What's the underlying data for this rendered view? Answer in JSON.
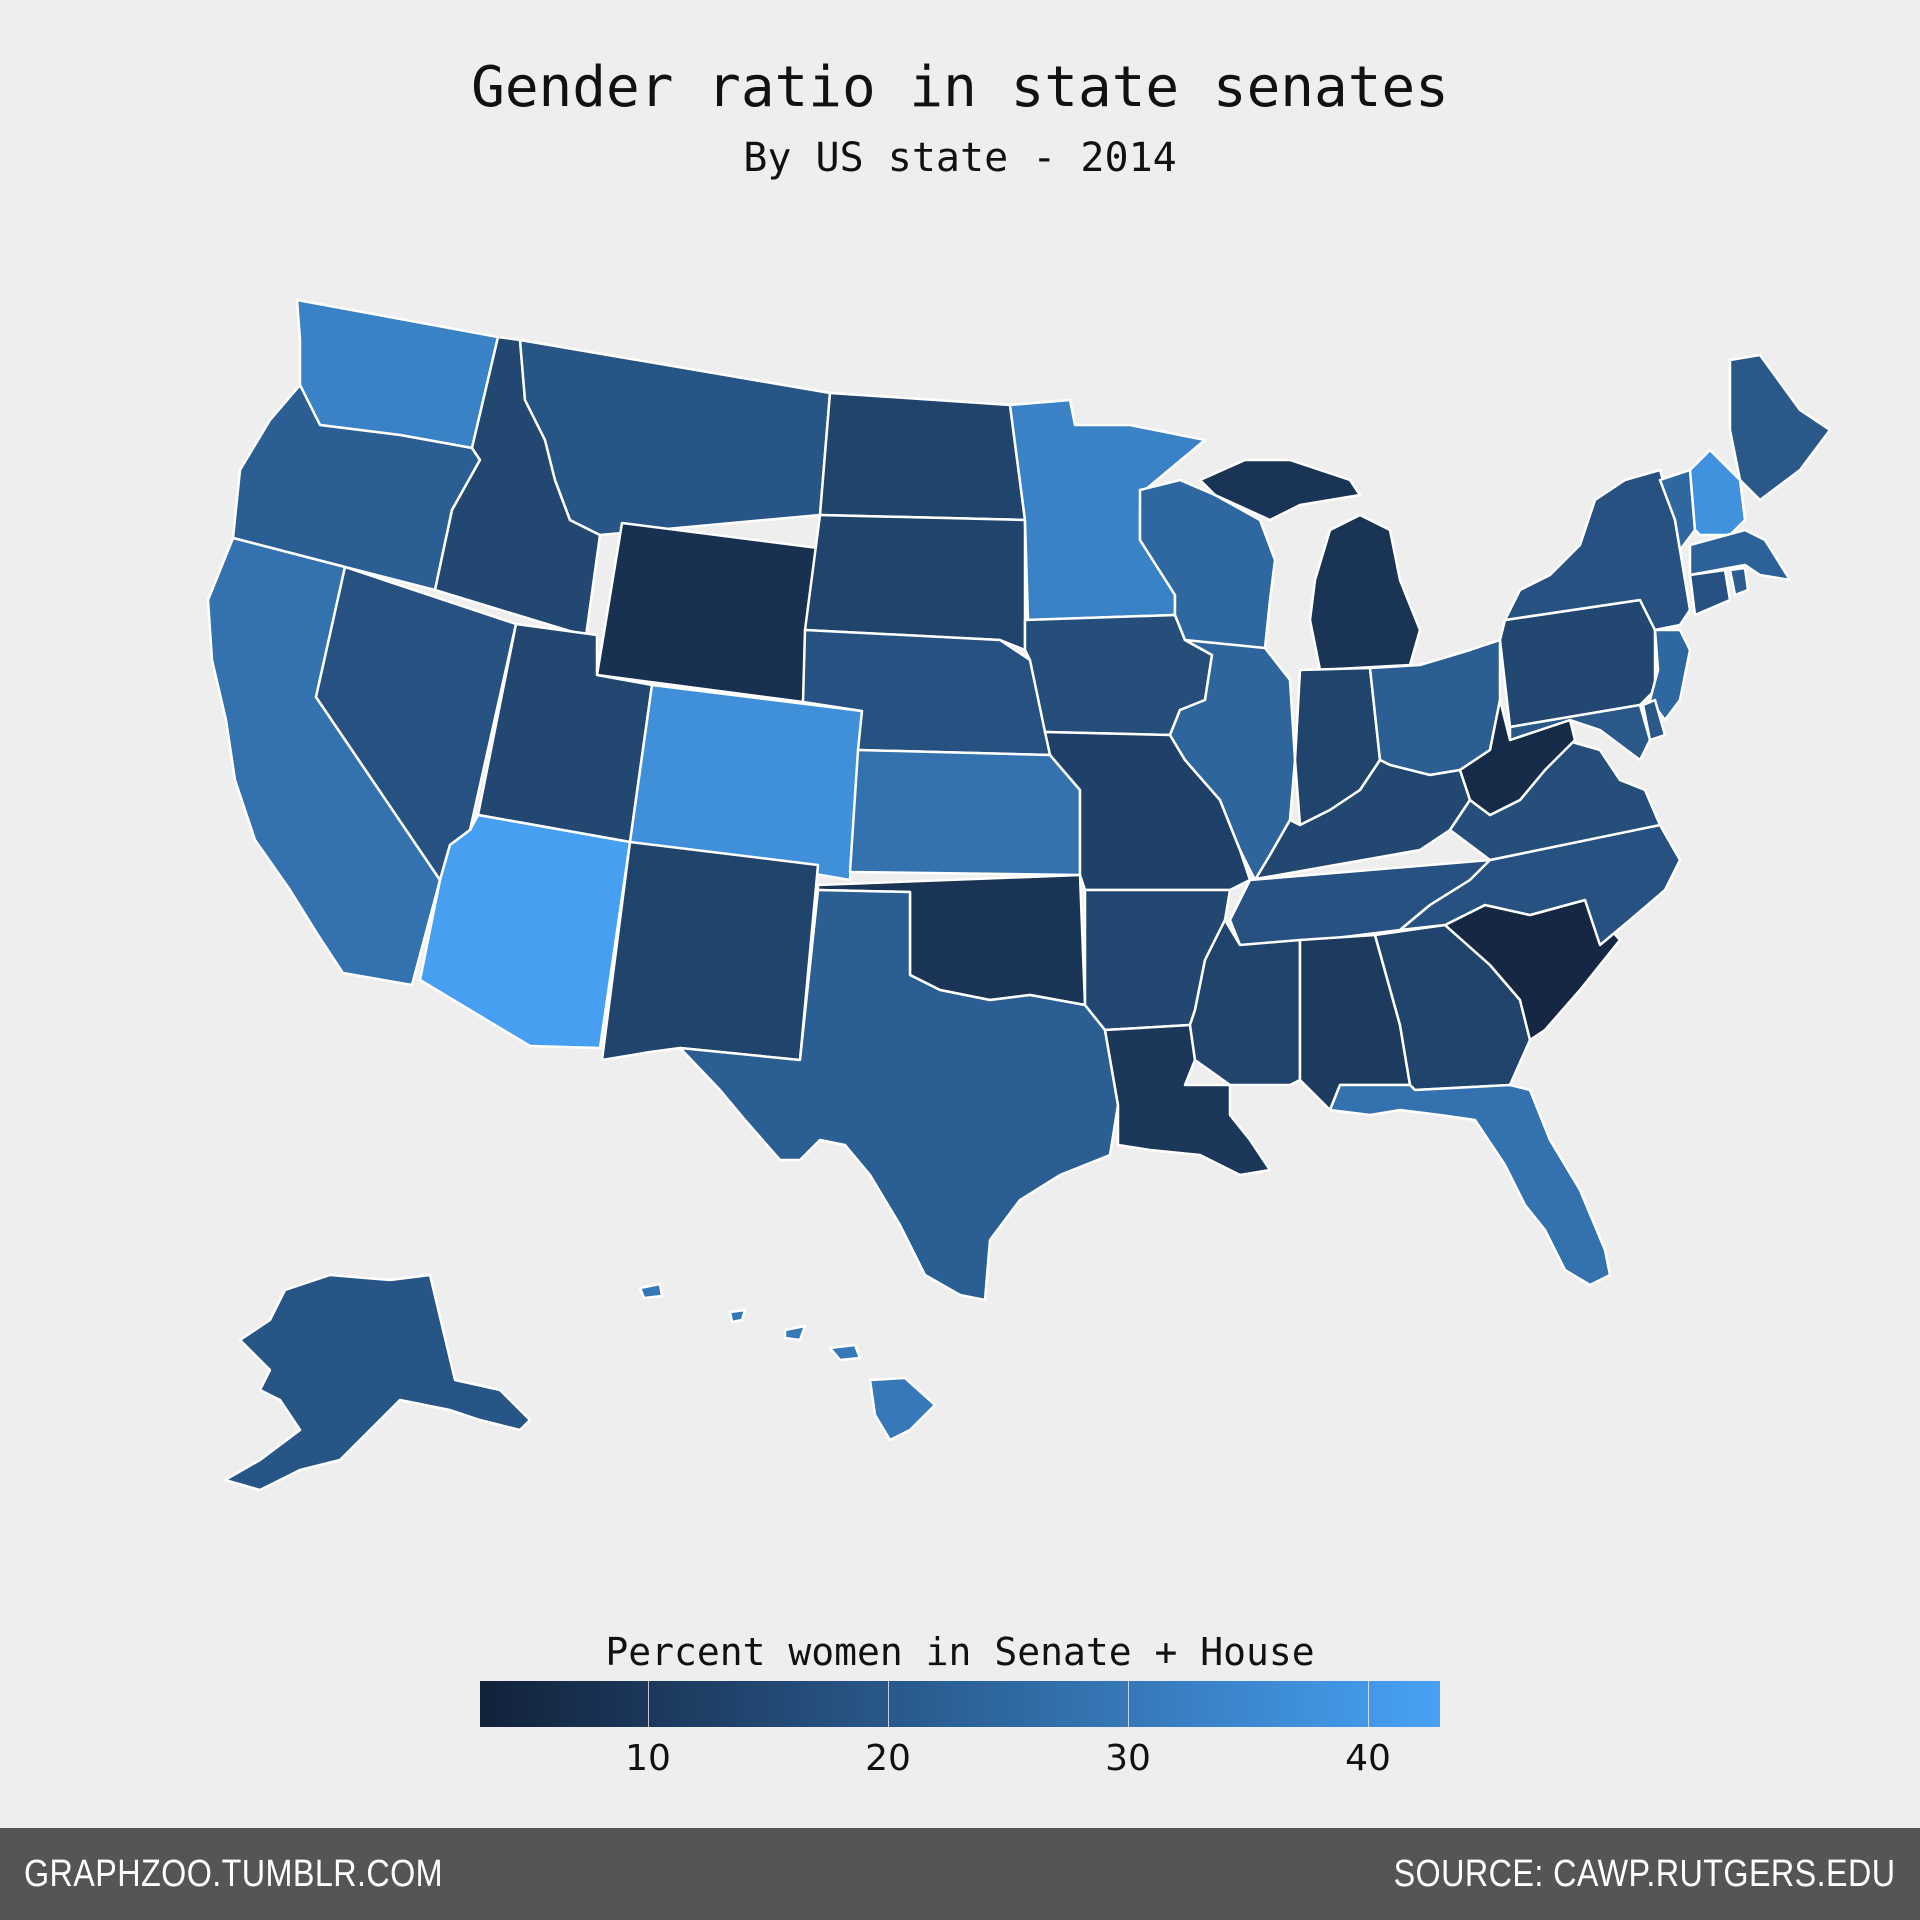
{
  "title": "Gender ratio in state senates",
  "subtitle": "By US state - 2014",
  "legend": {
    "title": "Percent women in Senate + House",
    "min": 3,
    "max": 43,
    "ticks": [
      "10",
      "20",
      "30",
      "40"
    ],
    "tick_values": [
      10,
      20,
      30,
      40
    ],
    "color_low": "#12213a",
    "color_high": "#47a2f5"
  },
  "footer": {
    "left": "GRAPHZOO.TUMBLR.COM",
    "right": "SOURCE: CAWP.RUTGERS.EDU"
  },
  "chart_data": {
    "type": "heatmap",
    "subtype": "choropleth",
    "region": "United States",
    "values": {
      "WA": 33,
      "OR": 22,
      "CA": 28,
      "NV": 18,
      "ID": 15,
      "MT": 19,
      "WY": 8,
      "UT": 15,
      "CO": 37,
      "AZ": 42,
      "NM": 14,
      "ND": 14,
      "SD": 14,
      "NE": 18,
      "KS": 28,
      "OK": 9,
      "TX": 22,
      "MN": 33,
      "IA": 17,
      "MO": 13,
      "AR": 15,
      "LA": 10,
      "WI": 25,
      "IL": 24,
      "MI": 9,
      "IN": 14,
      "OH": 22,
      "KY": 15,
      "TN": 18,
      "MS": 14,
      "AL": 11,
      "GA": 14,
      "FL": 28,
      "SC": 5,
      "NC": 18,
      "VA": 17,
      "WV": 6,
      "PA": 15,
      "NY": 18,
      "ME": 20,
      "VT": 25,
      "NH": 38,
      "MA": 23,
      "CT": 18,
      "RI": 22,
      "NJ": 25,
      "DE": 20,
      "MD": 20,
      "AK": 19,
      "HI": 30
    }
  }
}
